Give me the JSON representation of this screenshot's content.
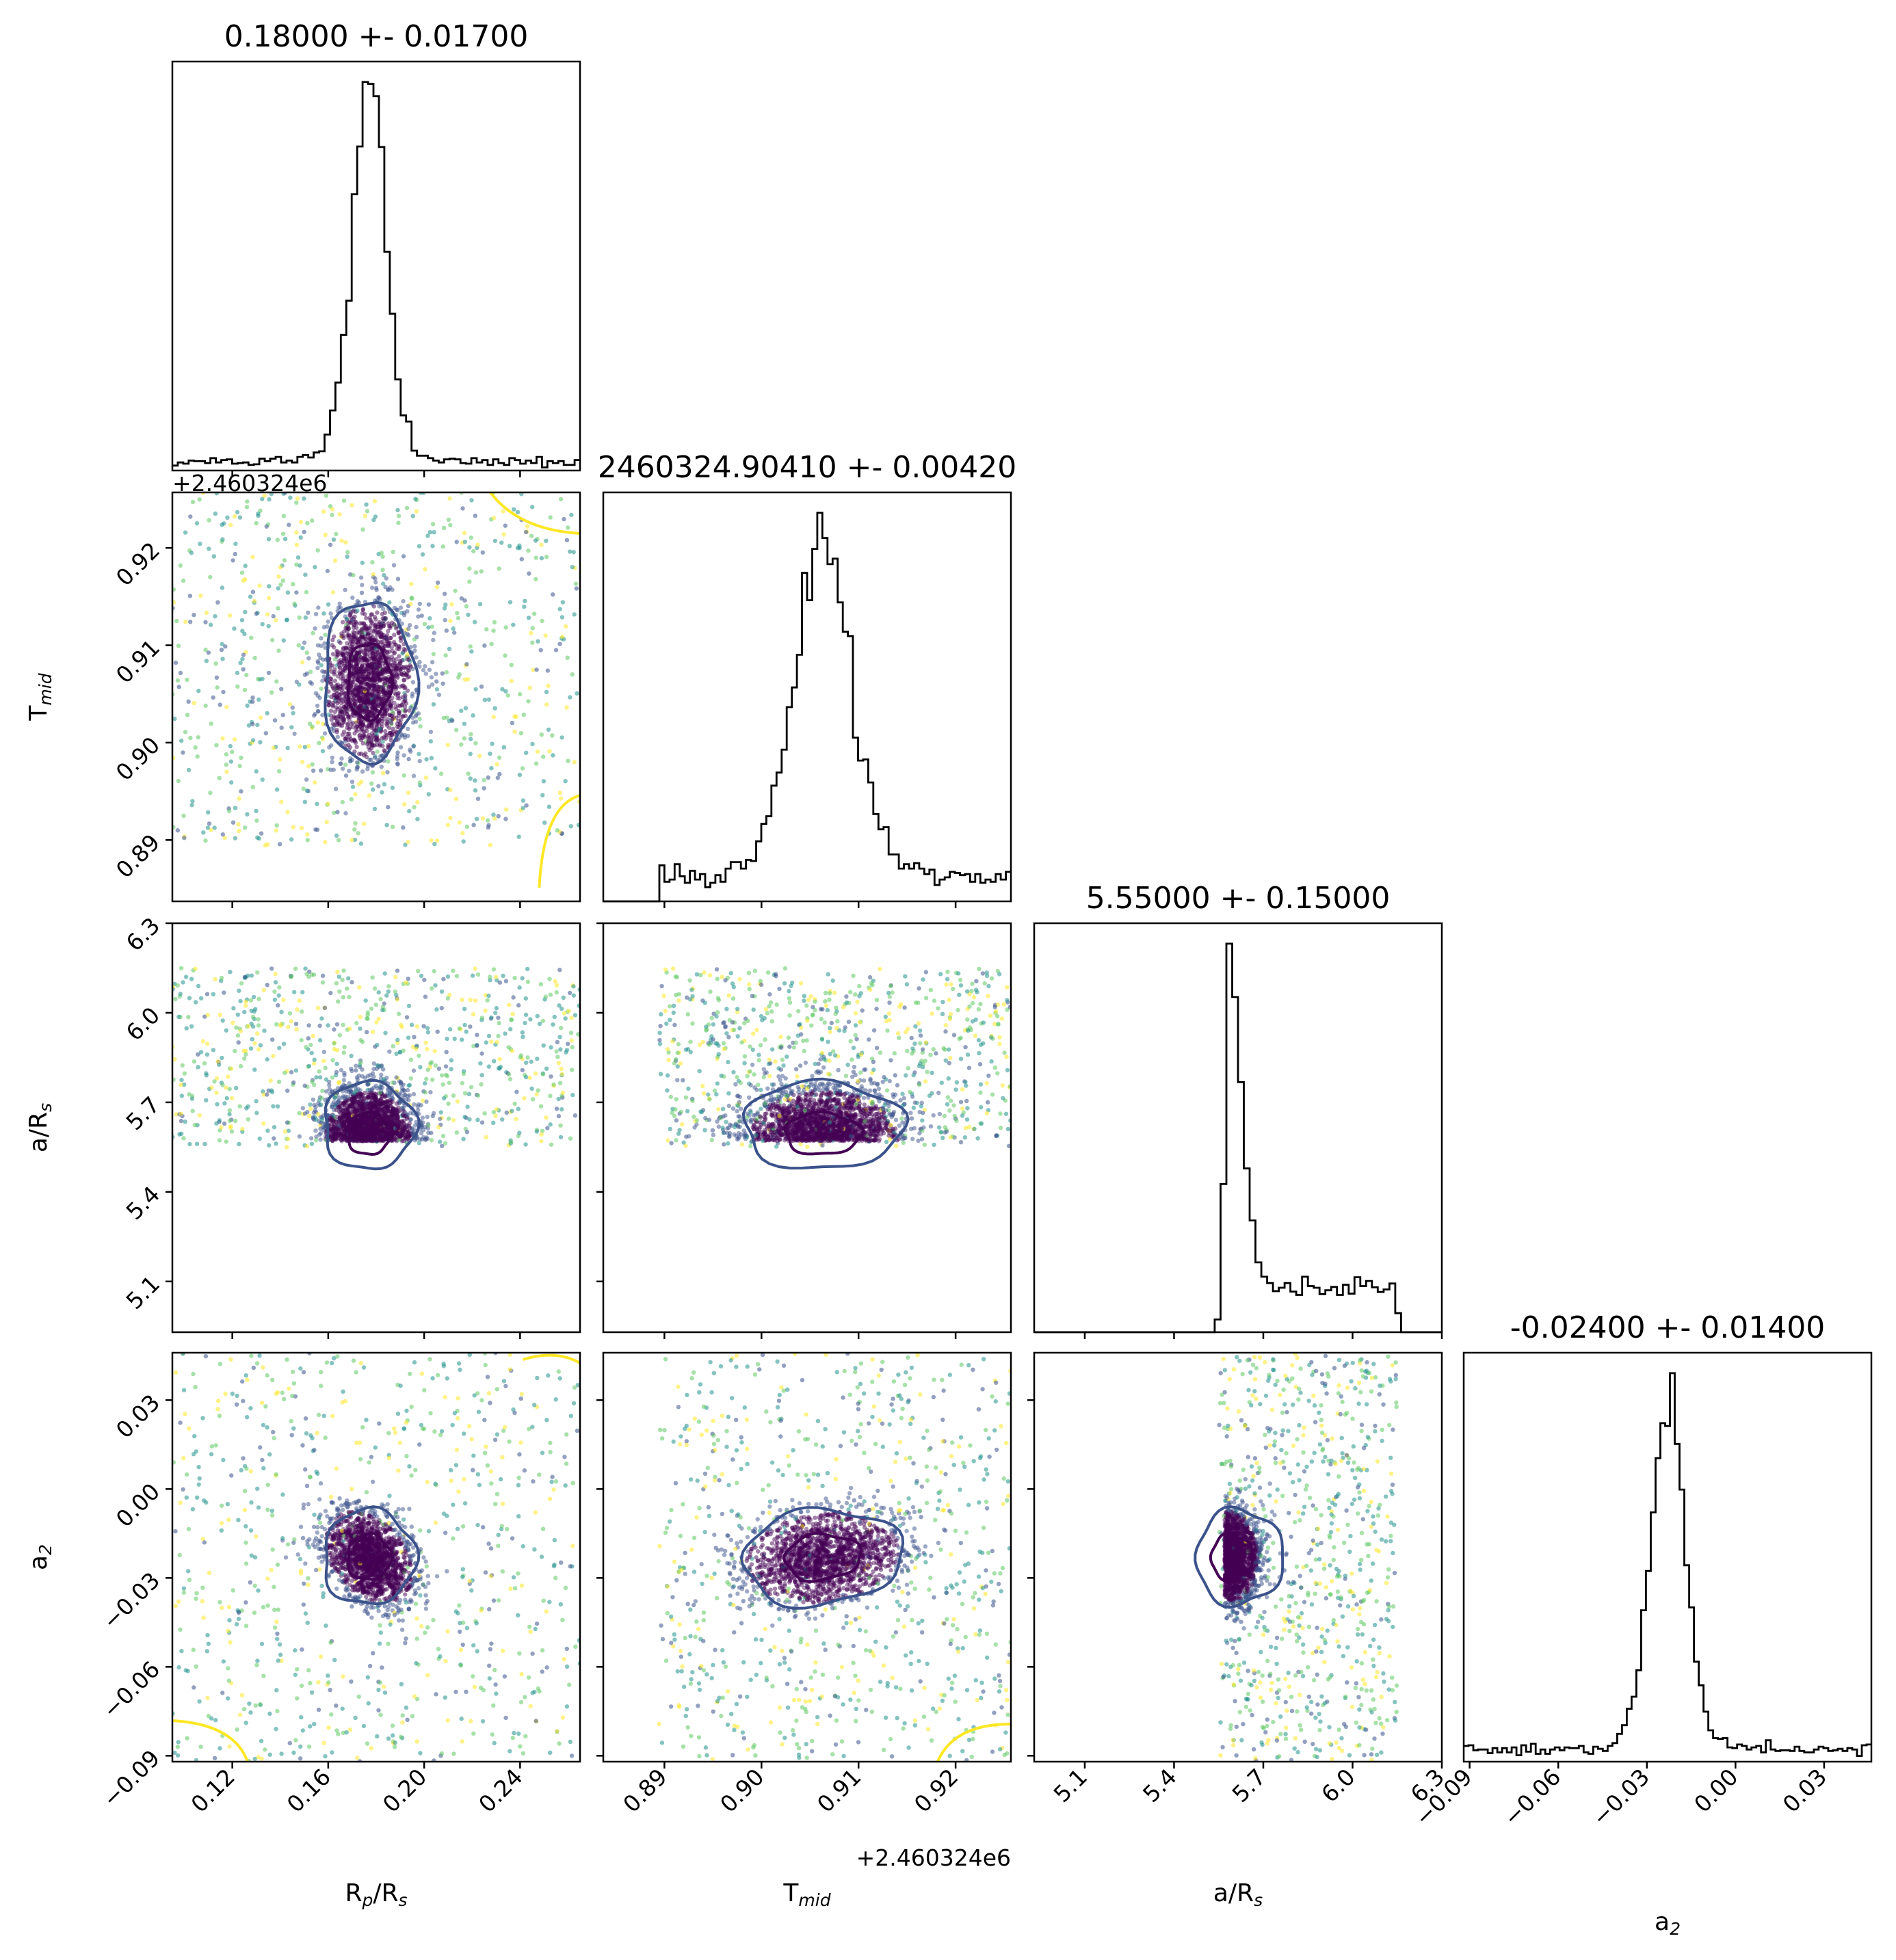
{
  "chart_data": {
    "type": "scatter",
    "subtype": "corner-plot",
    "parameters": [
      {
        "key": "rprs",
        "label_main": "R",
        "label_sub1": "p",
        "label_mid": "/R",
        "label_sub2": "s",
        "range": [
          0.095,
          0.265
        ],
        "ticks": [
          0.12,
          0.16,
          0.2,
          0.24
        ],
        "tick_labels": [
          "0.12",
          "0.16",
          "0.20",
          "0.24"
        ],
        "title": "0.18000 +- 0.01700",
        "mean": 0.177,
        "sigma": 0.0065,
        "tail": [
          0.095,
          0.265
        ]
      },
      {
        "key": "tmid",
        "label_main": "T",
        "label_sub1": "mid",
        "label_mid": "",
        "label_sub2": "",
        "range": [
          0.8837,
          0.9257
        ],
        "ticks": [
          0.89,
          0.9,
          0.91,
          0.92
        ],
        "tick_labels": [
          "0.89",
          "0.90",
          "0.91",
          "0.92"
        ],
        "title": "2460324.90410 +- 0.00420",
        "mean": 0.9063,
        "sigma": 0.0028,
        "tail": [
          0.8894,
          0.9257
        ],
        "offset_label": "+2.460324e6"
      },
      {
        "key": "ars",
        "label_main": "a/R",
        "label_sub1": "",
        "label_mid": "",
        "label_sub2": "s",
        "range": [
          4.93,
          6.3
        ],
        "ticks": [
          5.1,
          5.4,
          5.7,
          6.0,
          6.3
        ],
        "tick_labels": [
          "5.1",
          "5.4",
          "5.7",
          "6.0",
          "6.3"
        ],
        "title": "5.55000 +- 0.15000",
        "mean": 5.57,
        "sigma": 0.05,
        "tail": [
          5.55,
          6.15
        ]
      },
      {
        "key": "a2",
        "label_main": "a",
        "label_sub1": "2",
        "label_mid": "",
        "label_sub2": "",
        "range": [
          -0.092,
          0.046
        ],
        "ticks": [
          -0.09,
          -0.06,
          -0.03,
          0.0,
          0.03
        ],
        "tick_labels": [
          "−0.09",
          "−0.06",
          "−0.03",
          "0.00",
          "0.03"
        ],
        "title": "-0.02400 +- 0.01400",
        "mean": -0.023,
        "sigma": 0.0055,
        "tail": [
          -0.092,
          0.046
        ]
      }
    ],
    "colors": {
      "hist": "#000000",
      "inner_contour": "#440154",
      "outer_contour": "#3b528b",
      "far_contour": "#fde725",
      "viridis": [
        "#440154",
        "#3b528b",
        "#21918c",
        "#5ec962",
        "#fde725"
      ]
    }
  }
}
